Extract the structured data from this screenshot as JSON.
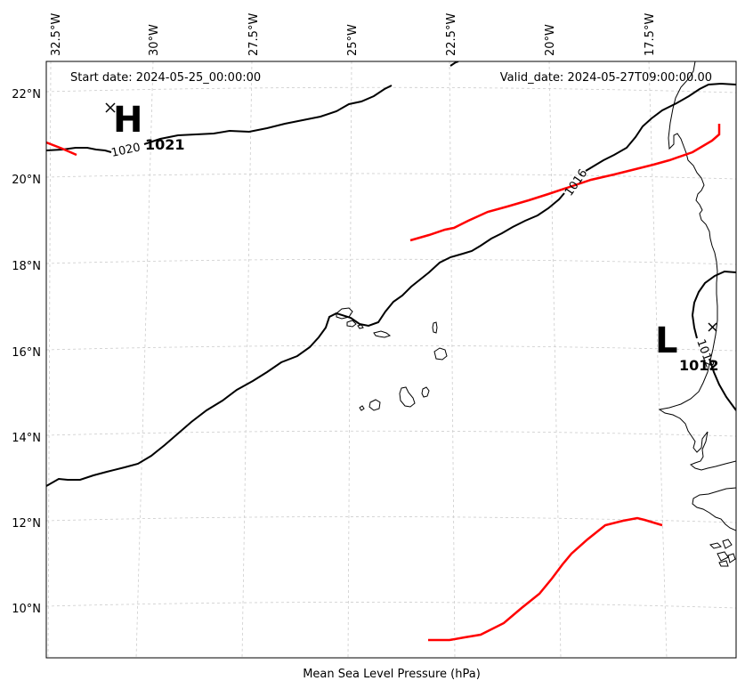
{
  "map": {
    "start_date": "Start date: 2024-05-25_00:00:00",
    "valid_date": "Valid_date: 2024-05-27T09:00:00.00",
    "xlabel": "Mean Sea Level Pressure (hPa)",
    "longitude_labels": [
      "32.5°W",
      "30°W",
      "27.5°W",
      "25°W",
      "22.5°W",
      "20°W",
      "17.5°W"
    ],
    "latitude_labels": [
      "22°N",
      "20°N",
      "18°N",
      "16°N",
      "14°N",
      "12°N",
      "10°N"
    ],
    "high_center": {
      "symbol": "H",
      "value": "1021"
    },
    "low_center": {
      "symbol": "L",
      "value": "1012"
    },
    "contour_labels": [
      "1020",
      "1016",
      "1012"
    ],
    "colors": {
      "isobar": "#000000",
      "front": "#ff0000",
      "grid": "#cccccc",
      "coast": "#000000"
    },
    "features": {
      "isobars": "solid black lines",
      "fronts": "red lines",
      "coastline": "thin black lines",
      "gridlines": "dashed light gray"
    }
  }
}
